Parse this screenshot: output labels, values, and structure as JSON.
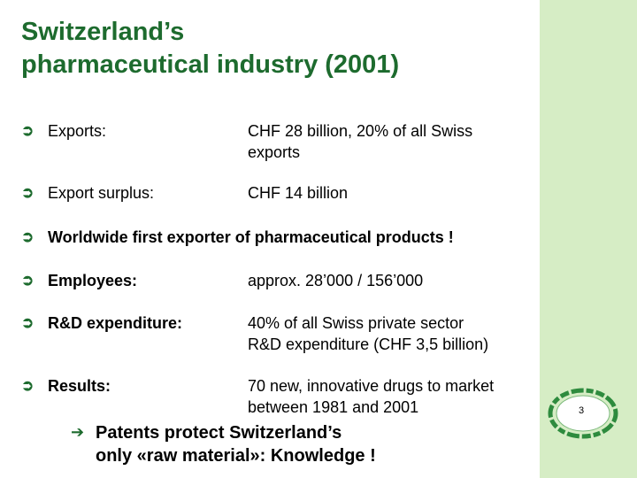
{
  "slide": {
    "title_lines": [
      "Switzerland’s",
      "pharmaceutical industry (2001)"
    ],
    "page_number": "3",
    "accent_color": "#1d6b2e",
    "band_color": "#d6edc5",
    "bullet_icon": "arrow-right-icon"
  },
  "items": [
    {
      "label": "Exports:",
      "value_lines": [
        "CHF 28 billion, 20% of all Swiss",
        "exports"
      ]
    },
    {
      "label": "Export surplus:",
      "value_lines": [
        "CHF 14 billion"
      ]
    },
    {
      "label": "Worldwide first exporter of pharmaceutical products !",
      "value_lines": []
    },
    {
      "label": "Employees:",
      "value_lines": [
        "approx. 28’000 / 156’000"
      ]
    },
    {
      "label": "R&D expenditure:",
      "value_lines": [
        "40% of all Swiss private sector",
        "R&D expenditure (CHF 3,5 billion)"
      ]
    },
    {
      "label": "Results:",
      "value_lines": [
        "70 new, innovative drugs to market",
        "between 1981 and 2001"
      ]
    }
  ],
  "conclusion": {
    "icon": "arrow-right-icon",
    "lines": [
      "Patents protect Switzerland’s",
      "only  «raw material»: Knowledge !"
    ]
  }
}
